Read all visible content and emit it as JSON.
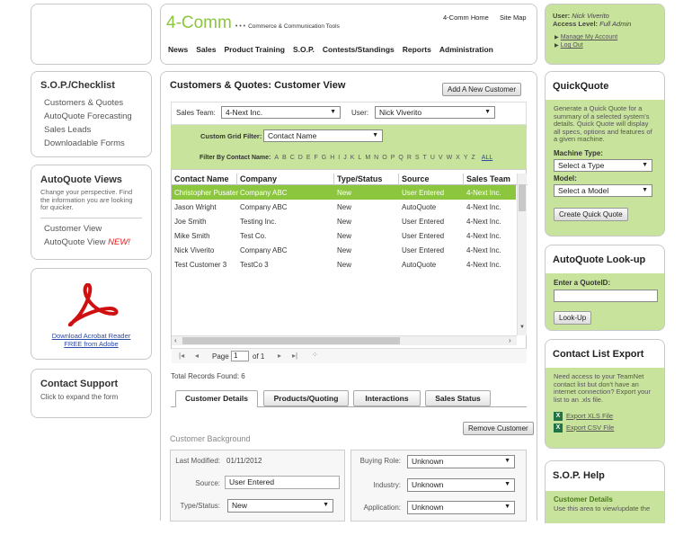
{
  "header": {
    "logo": "4-Comm",
    "logo_dots": "• • •",
    "tagline": "Commerce & Communication Tools",
    "home_link": "4-Comm Home",
    "sitemap_link": "Site Map",
    "nav": [
      "News",
      "Sales",
      "Product Training",
      "S.O.P.",
      "Contests/Standings",
      "Reports",
      "Administration"
    ]
  },
  "user_panel": {
    "user_label": "User:",
    "user_name": "Nick Viverito",
    "access_label": "Access Level:",
    "access_value": "Full Admin",
    "manage_link": "Manage My Account",
    "logout_link": "Log Out"
  },
  "sop_checklist": {
    "title": "S.O.P./Checklist",
    "items": [
      "Customers & Quotes",
      "AutoQuote Forecasting",
      "Sales Leads",
      "Downloadable Forms"
    ]
  },
  "autoquote_views": {
    "title": "AutoQuote Views",
    "desc": "Change your perspective. Find the information you are looking for quicker.",
    "items": [
      "Customer View",
      "AutoQuote View"
    ],
    "new_tag": "NEW!"
  },
  "acrobat": {
    "line1": "Download Acrobat Reader",
    "line2": "FREE from Adobe"
  },
  "contact_support": {
    "title": "Contact Support",
    "desc": "Click to expand the form"
  },
  "main": {
    "title": "Customers & Quotes: Customer View",
    "add_button": "Add A New Customer",
    "sales_team_label": "Sales Team:",
    "sales_team_value": "4-Next Inc.",
    "user_label": "User:",
    "user_value": "Nick Viverito",
    "grid_filter_label": "Custom Grid Filter:",
    "grid_filter_value": "Contact Name",
    "filter_by_label": "Filter By Contact Name:",
    "letters": [
      "A",
      "B",
      "C",
      "D",
      "E",
      "F",
      "G",
      "H",
      "I",
      "J",
      "K",
      "L",
      "M",
      "N",
      "O",
      "P",
      "Q",
      "R",
      "S",
      "T",
      "U",
      "V",
      "W",
      "X",
      "Y",
      "Z"
    ],
    "all_link": "ALL",
    "columns": [
      "Contact Name",
      "Company",
      "Type/Status",
      "Source",
      "Sales Team"
    ],
    "rows": [
      [
        "Christopher Pusateri",
        "Company ABC",
        "New",
        "User Entered",
        "4-Next Inc."
      ],
      [
        "Jason Wright",
        "Company ABC",
        "New",
        "AutoQuote",
        "4-Next Inc."
      ],
      [
        "Joe Smith",
        "Testing Inc.",
        "New",
        "User Entered",
        "4-Next Inc."
      ],
      [
        "Mike Smith",
        "Test Co.",
        "New",
        "User Entered",
        "4-Next Inc."
      ],
      [
        "Nick Viverito",
        "Company ABC",
        "New",
        "User Entered",
        "4-Next Inc."
      ],
      [
        "Test Customer 3",
        "TestCo 3",
        "New",
        "AutoQuote",
        "4-Next Inc."
      ]
    ],
    "pager_page_label": "Page",
    "pager_page_value": "1",
    "pager_of": "of 1",
    "total_records": "Total Records Found: 6",
    "tabs": [
      "Customer Details",
      "Products/Quoting",
      "Interactions",
      "Sales Status"
    ],
    "remove_button": "Remove Customer",
    "section_title": "Customer Background",
    "fields_left": [
      {
        "label": "Last Modified:",
        "value": "01/11/2012"
      },
      {
        "label": "Source:",
        "value": "User Entered"
      },
      {
        "label": "Type/Status:",
        "value": "New"
      }
    ],
    "fields_right": [
      {
        "label": "Buying Role:",
        "value": "Unknown"
      },
      {
        "label": "Industry:",
        "value": "Unknown"
      },
      {
        "label": "Application:",
        "value": "Unknown"
      }
    ]
  },
  "quickquote": {
    "title": "QuickQuote",
    "desc": "Generate a Quick Quote for a summary of a selected system's details. Quick Quote will display all specs, options and features of a given machine.",
    "machine_type_label": "Machine Type:",
    "machine_type_value": "Select a Type",
    "model_label": "Model:",
    "model_value": "Select a Model",
    "button": "Create Quick Quote"
  },
  "autoquote_lookup": {
    "title": "AutoQuote Look-up",
    "label": "Enter a QuoteID:",
    "input_value": "",
    "button": "Look-Up"
  },
  "contact_export": {
    "title": "Contact List Export",
    "desc": "Need access to your TeamNet contact list but don't have an internet connection? Export your list to an .xls file.",
    "xls": "Export XLS File",
    "csv": "Export CSV File"
  },
  "sop_help": {
    "title": "S.O.P. Help",
    "subtitle": "Customer Details",
    "desc": "Use this area to view/update the"
  },
  "colors": {
    "accent_green": "#8cc63f",
    "panel_green": "#c8e39c",
    "logo_green": "#8cc63f"
  }
}
